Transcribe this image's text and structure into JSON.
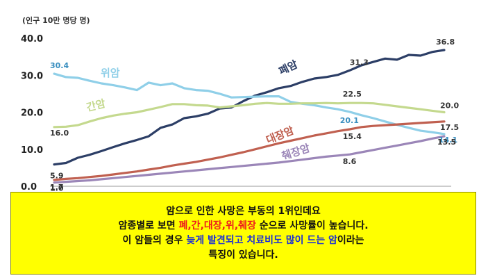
{
  "chart_data": {
    "type": "line",
    "unit_label": "(인구 10만 명당 명)",
    "ylim": [
      0,
      40
    ],
    "yticks": [
      "0.0",
      "10.0",
      "20.0",
      "30.0",
      "40.0"
    ],
    "n_points": 34,
    "grid": false,
    "series": [
      {
        "name": "폐암",
        "color": "#2c3e66",
        "values": [
          5.9,
          6.3,
          7.7,
          8.5,
          9.5,
          10.6,
          11.6,
          12.5,
          13.5,
          15.8,
          16.7,
          18.4,
          18.9,
          19.6,
          21.0,
          21.3,
          23.0,
          24.5,
          25.4,
          26.5,
          27.1,
          28.2,
          29.1,
          29.5,
          30.1,
          31.3,
          32.7,
          33.6,
          34.5,
          34.2,
          35.5,
          35.3,
          36.3,
          36.8
        ],
        "labels": [
          {
            "i": 0,
            "text": "5.9"
          },
          {
            "i": 25,
            "text": "31.3"
          },
          {
            "i": 33,
            "text": "36.8"
          }
        ]
      },
      {
        "name": "위암",
        "color": "#8fcfe8",
        "values": [
          30.4,
          29.5,
          29.3,
          28.5,
          27.8,
          27.3,
          26.7,
          26.0,
          28.0,
          27.3,
          27.8,
          26.5,
          26.0,
          25.8,
          25.0,
          24.0,
          24.1,
          24.2,
          24.3,
          24.3,
          22.8,
          22.3,
          21.9,
          21.3,
          20.8,
          20.1,
          19.2,
          18.4,
          17.5,
          16.6,
          15.8,
          15.0,
          14.6,
          14.1
        ],
        "labels": [
          {
            "i": 0,
            "text": "30.4"
          },
          {
            "i": 25,
            "text": "20.1"
          },
          {
            "i": 33,
            "text": "14.1"
          }
        ]
      },
      {
        "name": "간암",
        "color": "#c4d98e",
        "values": [
          16.0,
          16.1,
          16.5,
          17.5,
          18.4,
          19.1,
          19.6,
          20.0,
          20.7,
          21.4,
          22.2,
          22.2,
          21.9,
          21.8,
          21.3,
          21.6,
          21.9,
          22.3,
          22.5,
          22.3,
          22.3,
          22.4,
          22.4,
          22.5,
          22.4,
          22.5,
          22.5,
          22.4,
          22.0,
          21.6,
          21.2,
          20.8,
          20.4,
          20.0
        ],
        "labels": [
          {
            "i": 0,
            "text": "16.0"
          },
          {
            "i": 25,
            "text": "22.5"
          },
          {
            "i": 33,
            "text": "20.0"
          }
        ]
      },
      {
        "name": "대장암",
        "color": "#c06050",
        "values": [
          1.7,
          2.0,
          2.2,
          2.5,
          2.8,
          3.2,
          3.6,
          4.0,
          4.5,
          5.0,
          5.6,
          6.1,
          6.6,
          7.2,
          7.8,
          8.5,
          9.2,
          10.0,
          10.8,
          11.6,
          12.3,
          13.0,
          13.7,
          14.3,
          14.9,
          15.4,
          16.0,
          16.3,
          16.5,
          16.7,
          16.9,
          17.1,
          17.3,
          17.5
        ],
        "labels": [
          {
            "i": 0,
            "text": "1.7"
          },
          {
            "i": 25,
            "text": "15.4"
          },
          {
            "i": 33,
            "text": "17.5"
          }
        ]
      },
      {
        "name": "췌장암",
        "color": "#9b86b8",
        "values": [
          1.0,
          1.2,
          1.4,
          1.6,
          1.9,
          2.2,
          2.5,
          2.8,
          3.1,
          3.4,
          3.7,
          4.0,
          4.3,
          4.6,
          4.9,
          5.2,
          5.5,
          5.8,
          6.1,
          6.4,
          6.8,
          7.2,
          7.6,
          8.0,
          8.3,
          8.6,
          9.2,
          9.8,
          10.4,
          11.0,
          11.6,
          12.2,
          12.9,
          13.5
        ],
        "labels": [
          {
            "i": 0,
            "text": "1.0"
          },
          {
            "i": 25,
            "text": "8.6"
          },
          {
            "i": 33,
            "text": "13.5"
          }
        ]
      }
    ]
  },
  "caption": {
    "line1": "암으로 인한 사망은 부동의 1위인데요",
    "line2_a": "암종별로 보면 ",
    "line2_b": "폐,간,대장,위,췌장",
    "line2_c": " 순으로 사망률이 높습니다.",
    "line3_a": "이 암들의 경우 ",
    "line3_b": "늦게 발견되고 치료비도 많이 드는 암",
    "line3_c": "이라는",
    "line4": "특징이 있습니다."
  }
}
